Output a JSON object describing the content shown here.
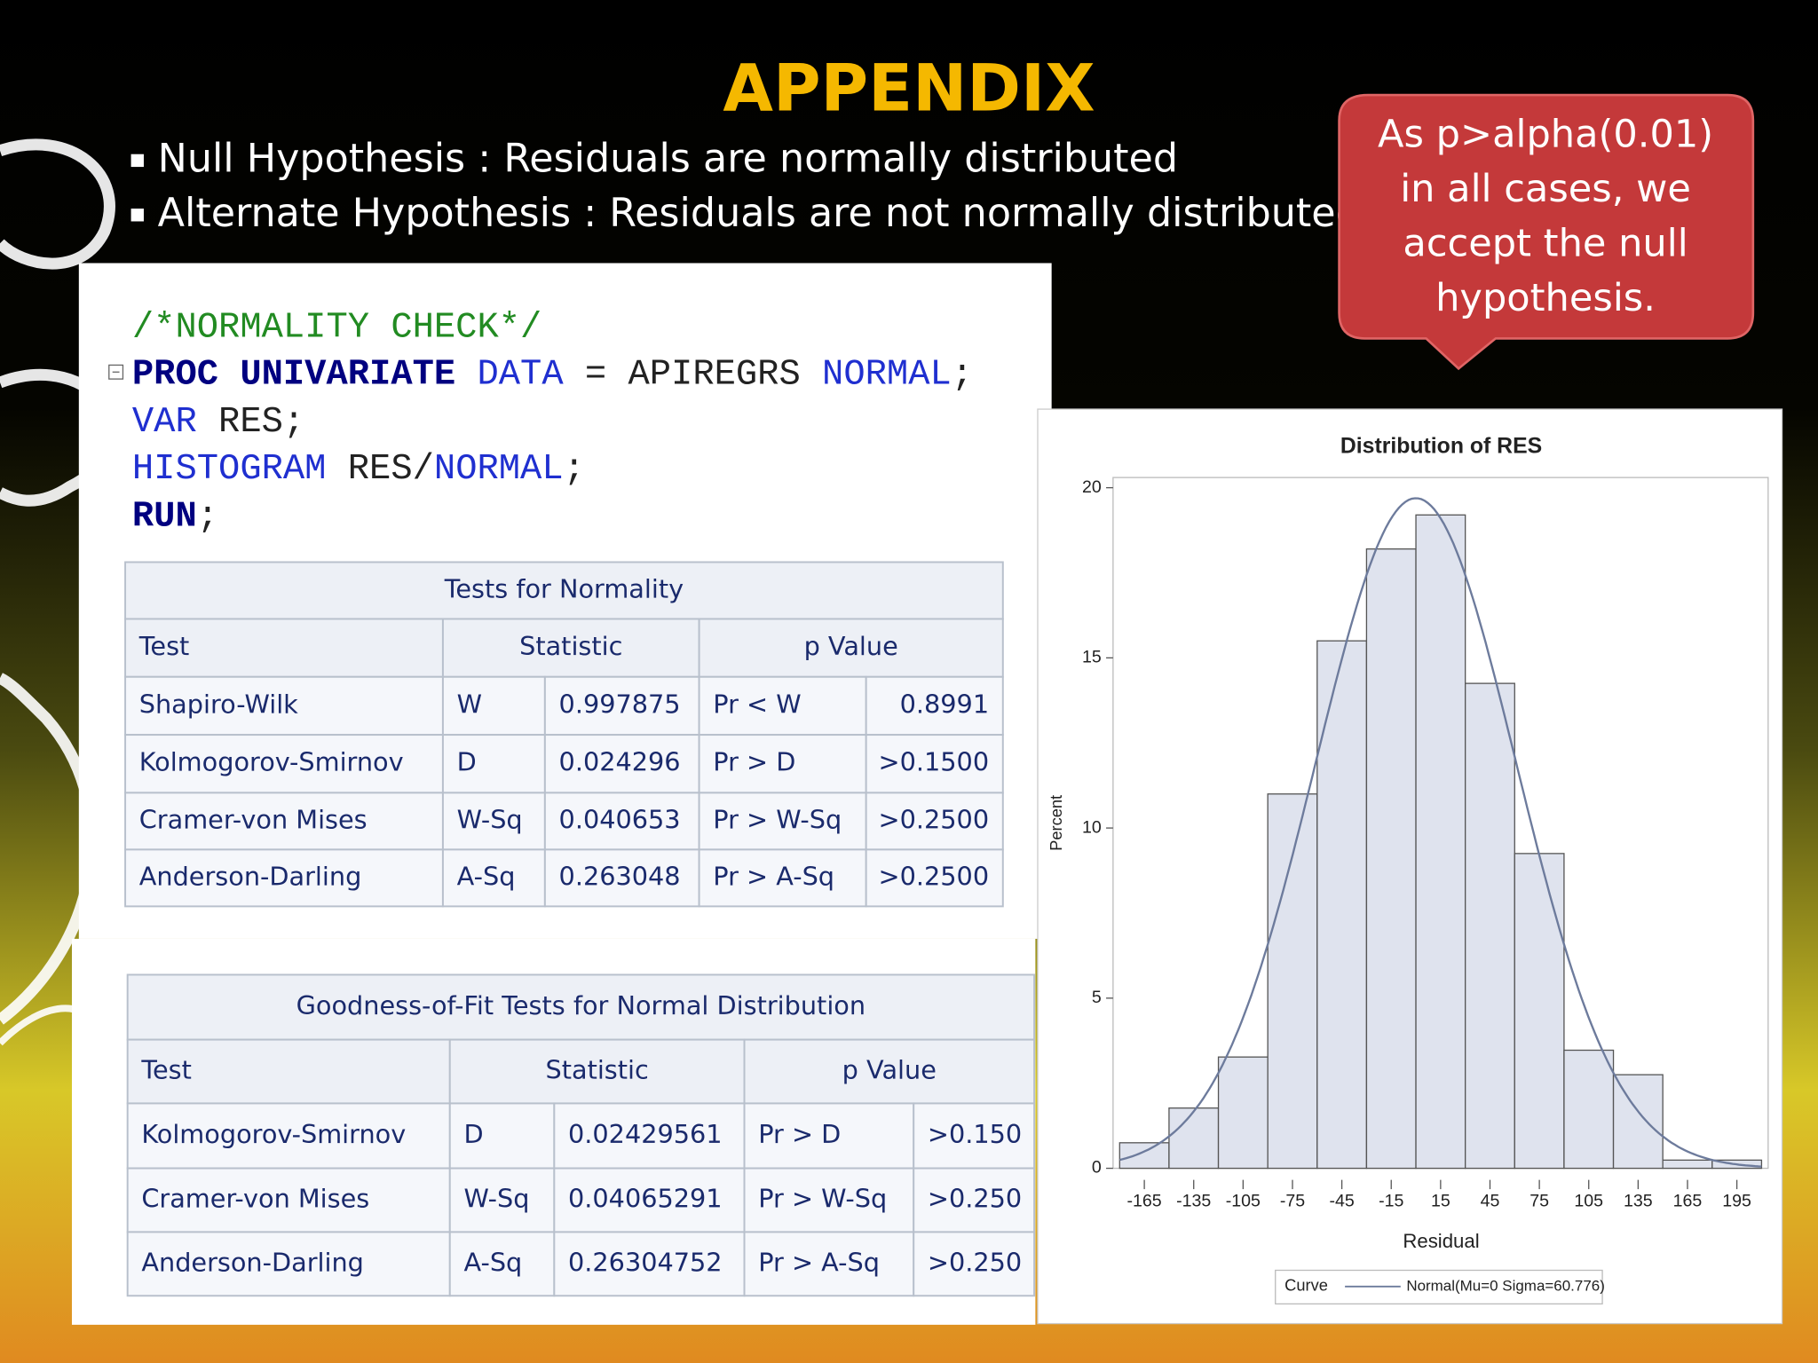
{
  "title": "APPENDIX",
  "bullets": [
    "Null Hypothesis : Residuals are normally distributed",
    "Alternate Hypothesis : Residuals are not normally distributed"
  ],
  "callout": [
    "As p>alpha(0.01)",
    "in all cases, we",
    "accept the null",
    "hypothesis."
  ],
  "code": [
    [
      {
        "text": "/*NORMALITY CHECK*/",
        "color": "#228b22",
        "bold": false
      }
    ],
    [
      {
        "text": "PROC UNIVARIATE",
        "color": "#000080",
        "bold": true
      },
      {
        "text": " DATA",
        "color": "#1f2fd0",
        "bold": false
      },
      {
        "text": " = APIREGRS ",
        "color": "#222222",
        "bold": false
      },
      {
        "text": "NORMAL",
        "color": "#1f2fd0",
        "bold": false
      },
      {
        "text": ";",
        "color": "#222222",
        "bold": false
      }
    ],
    [
      {
        "text": "VAR",
        "color": "#1f2fd0",
        "bold": false
      },
      {
        "text": " RES;",
        "color": "#222222",
        "bold": false
      }
    ],
    [
      {
        "text": "HISTOGRAM",
        "color": "#1f2fd0",
        "bold": false
      },
      {
        "text": " RES/",
        "color": "#222222",
        "bold": false
      },
      {
        "text": "NORMAL",
        "color": "#1f2fd0",
        "bold": false
      },
      {
        "text": ";",
        "color": "#222222",
        "bold": false
      }
    ],
    [
      {
        "text": "RUN",
        "color": "#000080",
        "bold": true
      },
      {
        "text": ";",
        "color": "#222222",
        "bold": false
      }
    ]
  ],
  "tables": [
    {
      "title": "Tests for Normality",
      "header": [
        "Test",
        "Statistic",
        "p Value"
      ],
      "rows": [
        [
          "Shapiro-Wilk",
          "W",
          "0.997875",
          "Pr < W",
          "0.8991"
        ],
        [
          "Kolmogorov-Smirnov",
          "D",
          "0.024296",
          "Pr > D",
          ">0.1500"
        ],
        [
          "Cramer-von Mises",
          "W-Sq",
          "0.040653",
          "Pr > W-Sq",
          ">0.2500"
        ],
        [
          "Anderson-Darling",
          "A-Sq",
          "0.263048",
          "Pr > A-Sq",
          ">0.2500"
        ]
      ]
    },
    {
      "title": "Goodness-of-Fit Tests for Normal Distribution",
      "header": [
        "Test",
        "Statistic",
        "p Value"
      ],
      "rows": [
        [
          "Kolmogorov-Smirnov",
          "D",
          "0.02429561",
          "Pr > D",
          ">0.150"
        ],
        [
          "Cramer-von Mises",
          "W-Sq",
          "0.04065291",
          "Pr > W-Sq",
          ">0.250"
        ],
        [
          "Anderson-Darling",
          "A-Sq",
          "0.26304752",
          "Pr > A-Sq",
          ">0.250"
        ]
      ]
    }
  ],
  "chart_data": {
    "type": "histogram",
    "title": "Distribution of RES",
    "x_label": "Residual",
    "y_label": "Percent",
    "bins": [
      -180,
      -150,
      -120,
      -90,
      -60,
      -30,
      0,
      30,
      60,
      90,
      120,
      150,
      180,
      210
    ],
    "values": [
      0.75,
      1.77,
      3.27,
      11.0,
      15.5,
      18.2,
      19.2,
      14.25,
      9.25,
      3.47,
      2.75,
      0.24,
      0.24
    ],
    "color": "#dfe3ee",
    "xlim": [
      -184,
      214
    ],
    "ylim": [
      0,
      20.3
    ],
    "xticks": [
      -165,
      -135,
      -105,
      -75,
      -45,
      -15,
      15,
      45,
      75,
      105,
      135,
      165,
      195
    ],
    "yticks": [
      0,
      5,
      10,
      15,
      20
    ],
    "curve": {
      "label": "Curve",
      "name": "Normal(Mu=0 Sigma=60.776)",
      "mu": 0,
      "sigma": 60.776,
      "color": "#6d7b9c"
    }
  }
}
